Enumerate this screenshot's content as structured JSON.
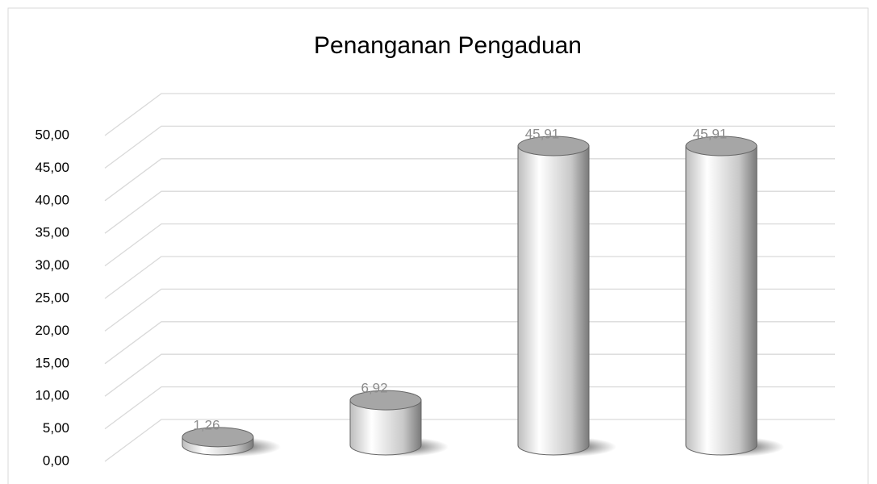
{
  "chart_data": {
    "type": "bar3d",
    "title": "Penanganan Pengaduan",
    "categories": [
      null,
      null,
      null,
      null
    ],
    "values": [
      1.26,
      6.92,
      45.91,
      45.91
    ],
    "value_labels": [
      "1,26",
      "6,92",
      "45,91",
      "45,91"
    ],
    "color": "#d9d9d9",
    "ylim": [
      0,
      50
    ],
    "yticks": [
      {
        "value": 0,
        "label": "0,00"
      },
      {
        "value": 5,
        "label": "5,00"
      },
      {
        "value": 10,
        "label": "10,00"
      },
      {
        "value": 15,
        "label": "15,00"
      },
      {
        "value": 20,
        "label": "20,00"
      },
      {
        "value": 25,
        "label": "25,00"
      },
      {
        "value": 30,
        "label": "30,00"
      },
      {
        "value": 35,
        "label": "35,00"
      },
      {
        "value": 40,
        "label": "40,00"
      },
      {
        "value": 45,
        "label": "45,00"
      },
      {
        "value": 50,
        "label": "50,00"
      }
    ],
    "grid": true
  }
}
